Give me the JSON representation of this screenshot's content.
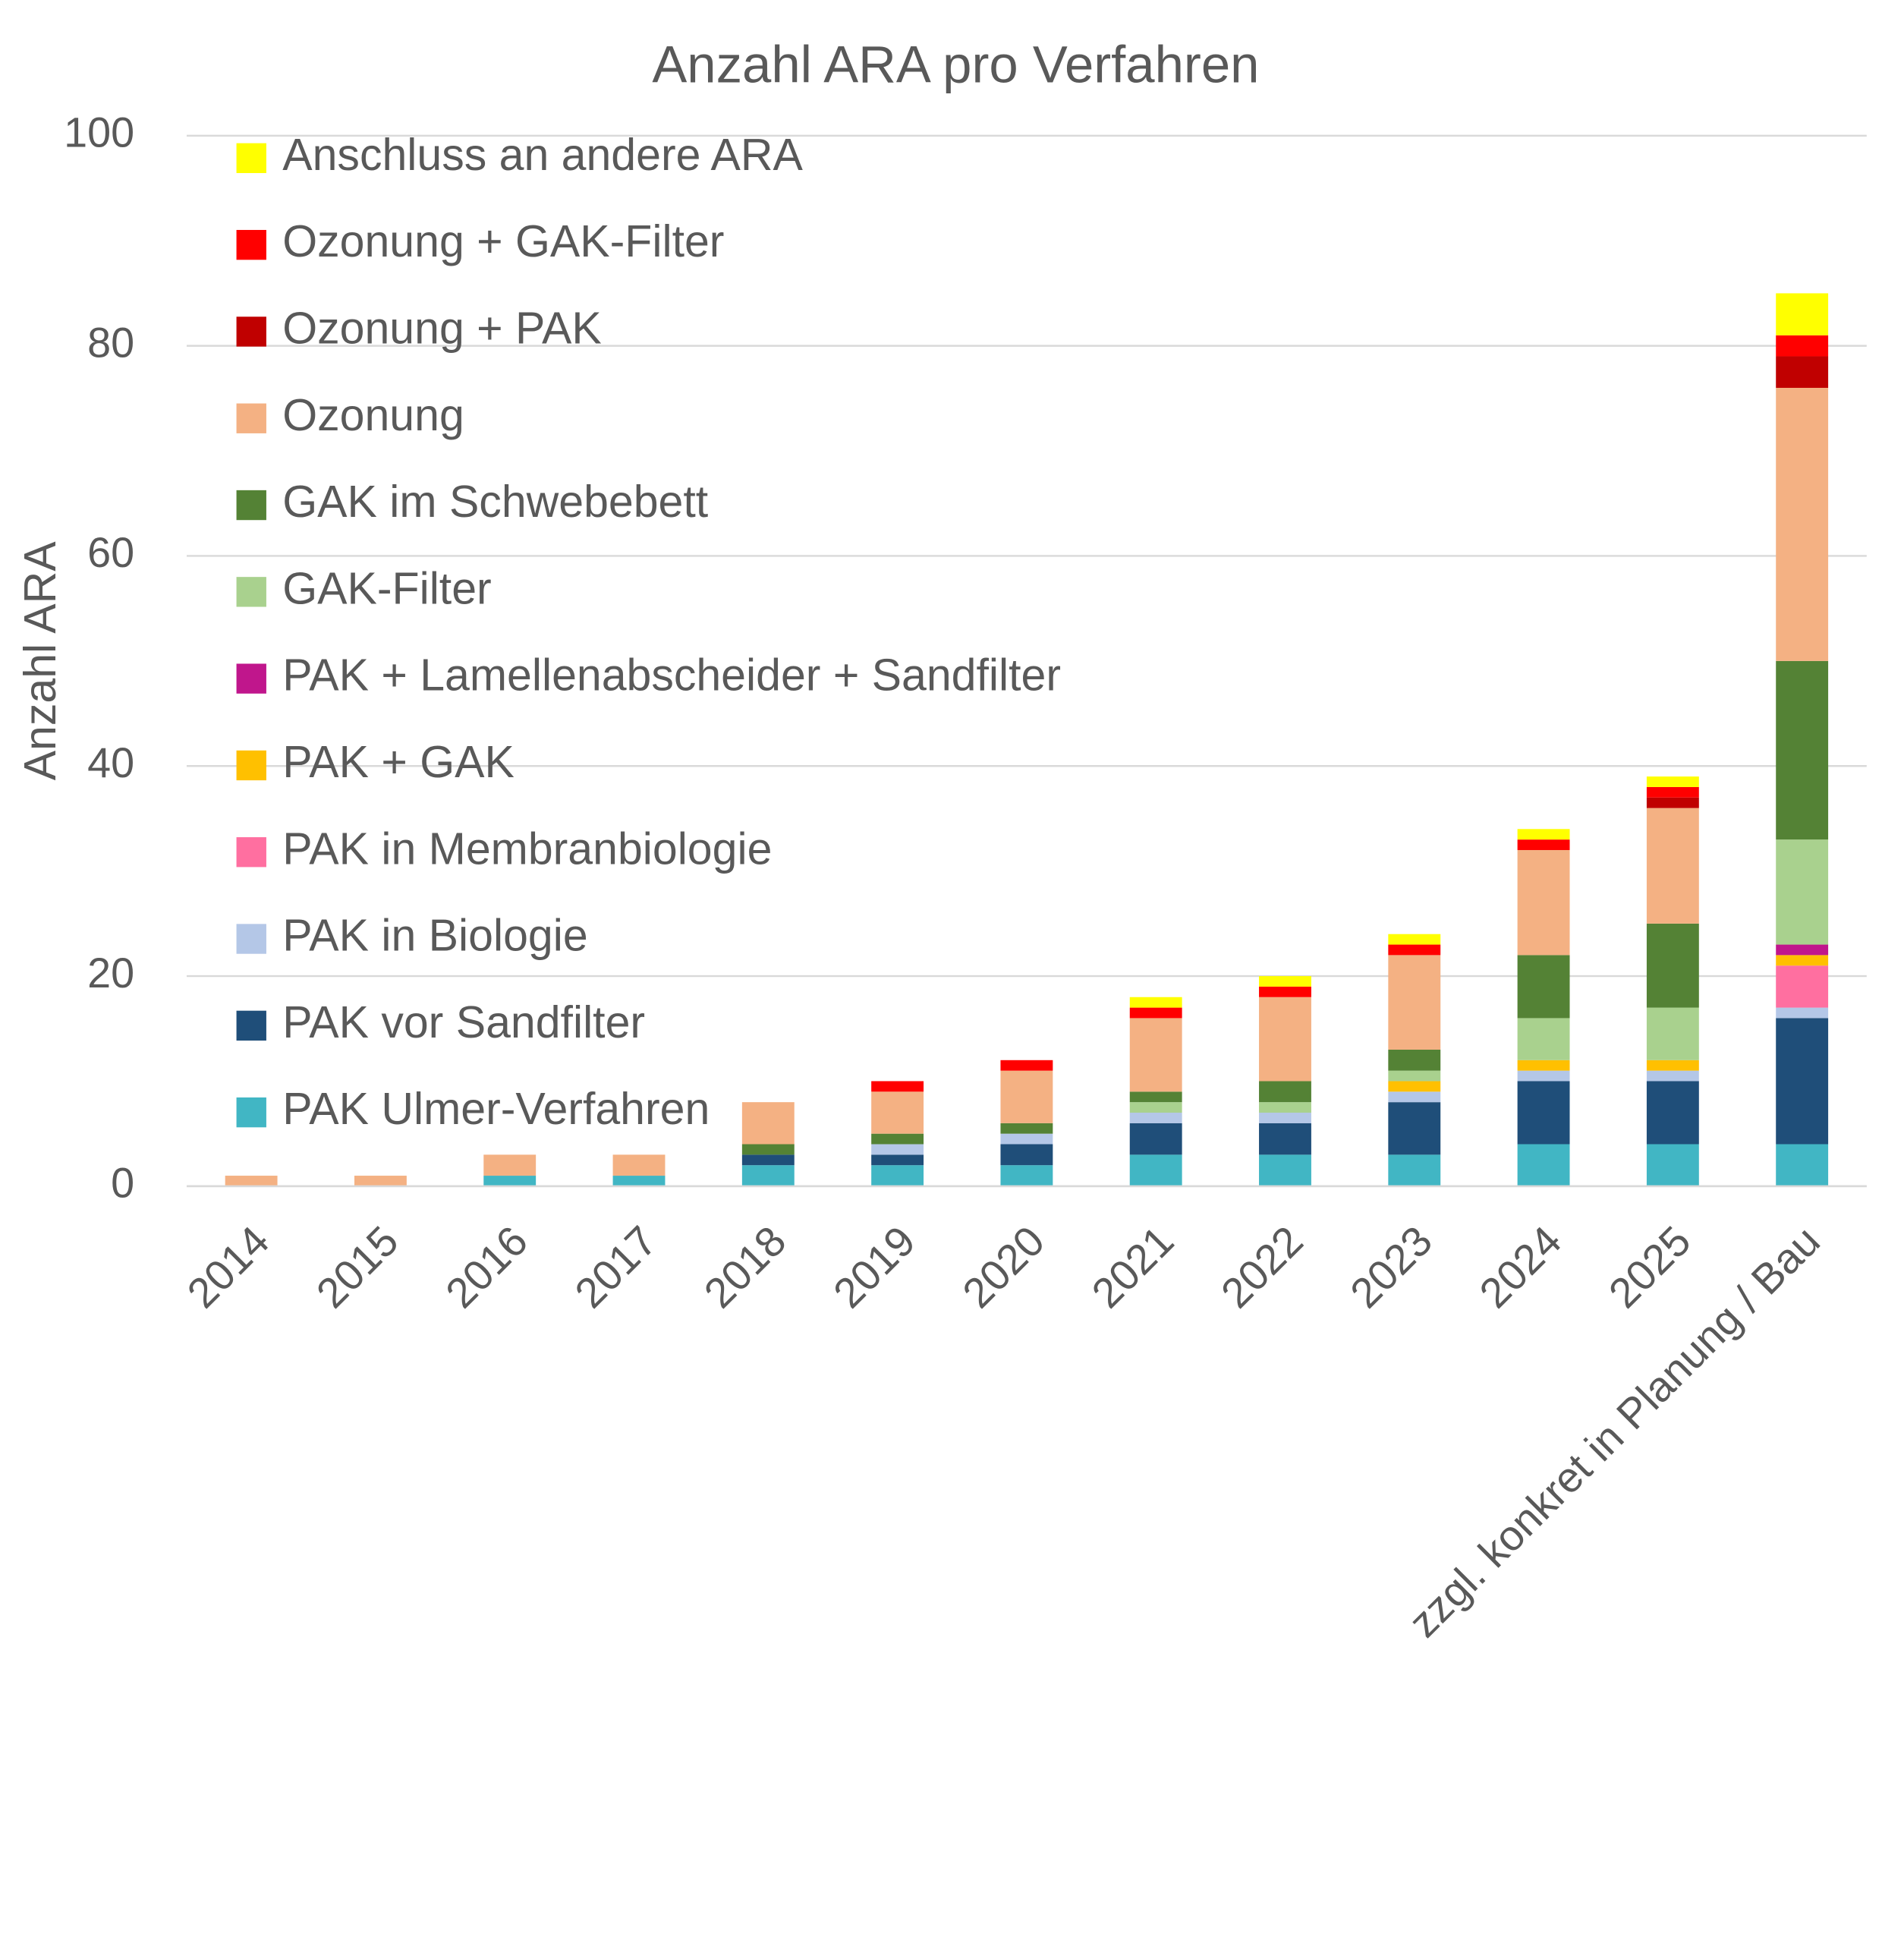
{
  "chart_data": {
    "type": "stacked_bar",
    "title": "Anzahl ARA pro Verfahren",
    "y_label": "Anzahl ARA",
    "categories": [
      "2014",
      "2015",
      "2016",
      "2017",
      "2018",
      "2019",
      "2020",
      "2021",
      "2022",
      "2023",
      "2024",
      "2025",
      "zzgl. konkret in Planung / Bau"
    ],
    "series": [
      {
        "name": "PAK Ulmer-Verfahren",
        "color": "#41b6c4",
        "values": [
          0,
          0,
          1,
          1,
          2,
          2,
          2,
          3,
          3,
          3,
          4,
          4,
          4
        ]
      },
      {
        "name": "PAK vor Sandfilter",
        "color": "#1f4e79",
        "values": [
          0,
          0,
          0,
          0,
          1,
          1,
          2,
          3,
          3,
          5,
          6,
          6,
          12
        ]
      },
      {
        "name": "PAK in Biologie",
        "color": "#b4c7e7",
        "values": [
          0,
          0,
          0,
          0,
          0,
          1,
          1,
          1,
          1,
          1,
          1,
          1,
          1
        ]
      },
      {
        "name": "PAK in Membranbiologie",
        "color": "#ff6fa0",
        "values": [
          0,
          0,
          0,
          0,
          0,
          0,
          0,
          0,
          0,
          0,
          0,
          0,
          4
        ]
      },
      {
        "name": "PAK + GAK",
        "color": "#ffc000",
        "values": [
          0,
          0,
          0,
          0,
          0,
          0,
          0,
          0,
          0,
          1,
          1,
          1,
          1
        ]
      },
      {
        "name": "PAK + Lamellenabscheider + Sandfilter",
        "color": "#c0168c",
        "values": [
          0,
          0,
          0,
          0,
          0,
          0,
          0,
          0,
          0,
          0,
          0,
          0,
          1
        ]
      },
      {
        "name": "GAK-Filter",
        "color": "#a9d18e",
        "values": [
          0,
          0,
          0,
          0,
          0,
          0,
          0,
          1,
          1,
          1,
          4,
          5,
          10
        ]
      },
      {
        "name": "GAK im Schwebebett",
        "color": "#548235",
        "values": [
          0,
          0,
          0,
          0,
          1,
          1,
          1,
          1,
          2,
          2,
          6,
          8,
          17
        ]
      },
      {
        "name": "Ozonung",
        "color": "#f4b183",
        "values": [
          1,
          1,
          2,
          2,
          4,
          4,
          5,
          7,
          8,
          9,
          10,
          11,
          26
        ]
      },
      {
        "name": "Ozonung + PAK",
        "color": "#c00000",
        "values": [
          0,
          0,
          0,
          0,
          0,
          0,
          0,
          0,
          0,
          0,
          0,
          1,
          3
        ]
      },
      {
        "name": "Ozonung + GAK-Filter",
        "color": "#ff0000",
        "values": [
          0,
          0,
          0,
          0,
          0,
          1,
          1,
          1,
          1,
          1,
          1,
          1,
          2
        ]
      },
      {
        "name": "Anschluss an andere ARA",
        "color": "#ffff00",
        "values": [
          0,
          0,
          0,
          0,
          0,
          0,
          0,
          1,
          1,
          1,
          1,
          1,
          4
        ]
      }
    ],
    "ylim": [
      0,
      100
    ],
    "yticks": [
      0,
      20,
      40,
      60,
      80,
      100
    ],
    "grid": true,
    "legend": "upper left"
  }
}
